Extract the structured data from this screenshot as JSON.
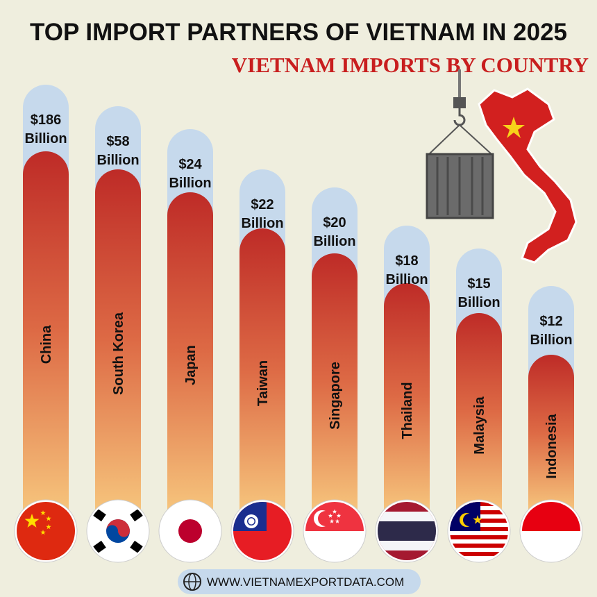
{
  "header": {
    "title": "TOP IMPORT PARTNERS OF VIETNAM IN 2025",
    "subtitle": "VIETNAM IMPORTS BY COUNTRY"
  },
  "items": [
    {
      "country": "China",
      "amount": "$186",
      "unit": "Billion"
    },
    {
      "country": "South Korea",
      "amount": "$58",
      "unit": "Billion"
    },
    {
      "country": "Japan",
      "amount": "$24",
      "unit": "Billion"
    },
    {
      "country": "Taiwan",
      "amount": "$22",
      "unit": "Billion"
    },
    {
      "country": "Singapore",
      "amount": "$20",
      "unit": "Billion"
    },
    {
      "country": "Thailand",
      "amount": "$18",
      "unit": "Billion"
    },
    {
      "country": "Malaysia",
      "amount": "$15",
      "unit": "Billion"
    },
    {
      "country": "Indonesia",
      "amount": "$12",
      "unit": "Billion"
    }
  ],
  "footer": {
    "url": "WWW.VIETNAMEXPORTDATA.COM"
  }
}
